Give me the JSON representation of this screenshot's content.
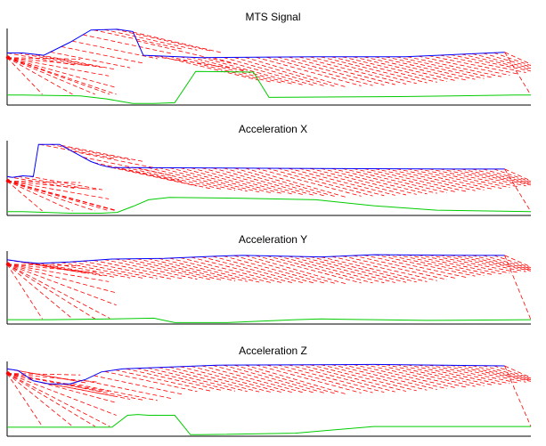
{
  "chart_data": [
    {
      "type": "line",
      "title": "MTS Signal",
      "xlim": [
        0,
        100
      ],
      "ylim": [
        0,
        100
      ],
      "colors": {
        "upper": "#0000ff",
        "lower": "#00cc00",
        "fan": "#ff0000"
      },
      "series": [
        {
          "name": "upper",
          "x": [
            0,
            3,
            7,
            12,
            16,
            21,
            24,
            26,
            37,
            59,
            76,
            95
          ],
          "y": [
            68,
            68,
            65,
            82,
            98,
            99,
            96,
            65,
            62,
            63,
            63,
            69
          ]
        },
        {
          "name": "lower",
          "x": [
            0,
            3,
            14,
            19,
            24,
            28,
            32,
            36,
            47,
            50,
            75,
            97,
            100
          ],
          "y": [
            13,
            13,
            12,
            8,
            2,
            2,
            3,
            44,
            43,
            10,
            11,
            13,
            13
          ]
        }
      ]
    },
    {
      "type": "line",
      "title": "Acceleration X",
      "xlim": [
        0,
        100
      ],
      "ylim": [
        0,
        100
      ],
      "colors": {
        "upper": "#0000ff",
        "lower": "#00cc00",
        "fan": "#ff0000"
      },
      "series": [
        {
          "name": "upper",
          "x": [
            0,
            1,
            3,
            5,
            6,
            10,
            16,
            18,
            20,
            23,
            53,
            88,
            95
          ],
          "y": [
            52,
            51,
            53,
            52,
            95,
            95,
            72,
            67,
            64,
            64,
            63,
            62,
            62
          ]
        },
        {
          "name": "lower",
          "x": [
            0,
            3,
            12,
            18,
            21,
            24,
            27,
            31,
            45,
            59,
            70,
            82,
            100
          ],
          "y": [
            5,
            5,
            3,
            3,
            4,
            12,
            21,
            24,
            23,
            21,
            13,
            7,
            5
          ]
        }
      ]
    },
    {
      "type": "line",
      "title": "Acceleration Y",
      "xlim": [
        0,
        100
      ],
      "ylim": [
        0,
        100
      ],
      "colors": {
        "upper": "#0000ff",
        "lower": "#00cc00",
        "fan": "#ff0000"
      },
      "series": [
        {
          "name": "upper",
          "x": [
            0,
            3,
            6,
            12,
            20,
            30,
            40,
            45,
            60,
            70,
            90,
            95
          ],
          "y": [
            88,
            85,
            83,
            85,
            89,
            90,
            93,
            94,
            92,
            95,
            94,
            94
          ]
        },
        {
          "name": "lower",
          "x": [
            0,
            8,
            20,
            28,
            32,
            42,
            55,
            60,
            80,
            100
          ],
          "y": [
            6,
            6,
            7,
            8,
            2,
            2,
            6,
            7,
            5,
            6
          ]
        }
      ]
    },
    {
      "type": "line",
      "title": "Acceleration Z",
      "xlim": [
        0,
        100
      ],
      "ylim": [
        0,
        100
      ],
      "colors": {
        "upper": "#0000ff",
        "lower": "#00cc00",
        "fan": "#ff0000"
      },
      "series": [
        {
          "name": "upper",
          "x": [
            0,
            2,
            5,
            8,
            12,
            15,
            18,
            22,
            40,
            70,
            95
          ],
          "y": [
            90,
            88,
            74,
            70,
            70,
            76,
            86,
            90,
            95,
            96,
            94
          ]
        },
        {
          "name": "lower",
          "x": [
            0,
            20,
            23,
            25,
            27,
            32,
            35,
            37,
            55,
            70,
            100
          ],
          "y": [
            12,
            12,
            28,
            29,
            28,
            28,
            2,
            2,
            4,
            13,
            13
          ]
        }
      ]
    }
  ]
}
